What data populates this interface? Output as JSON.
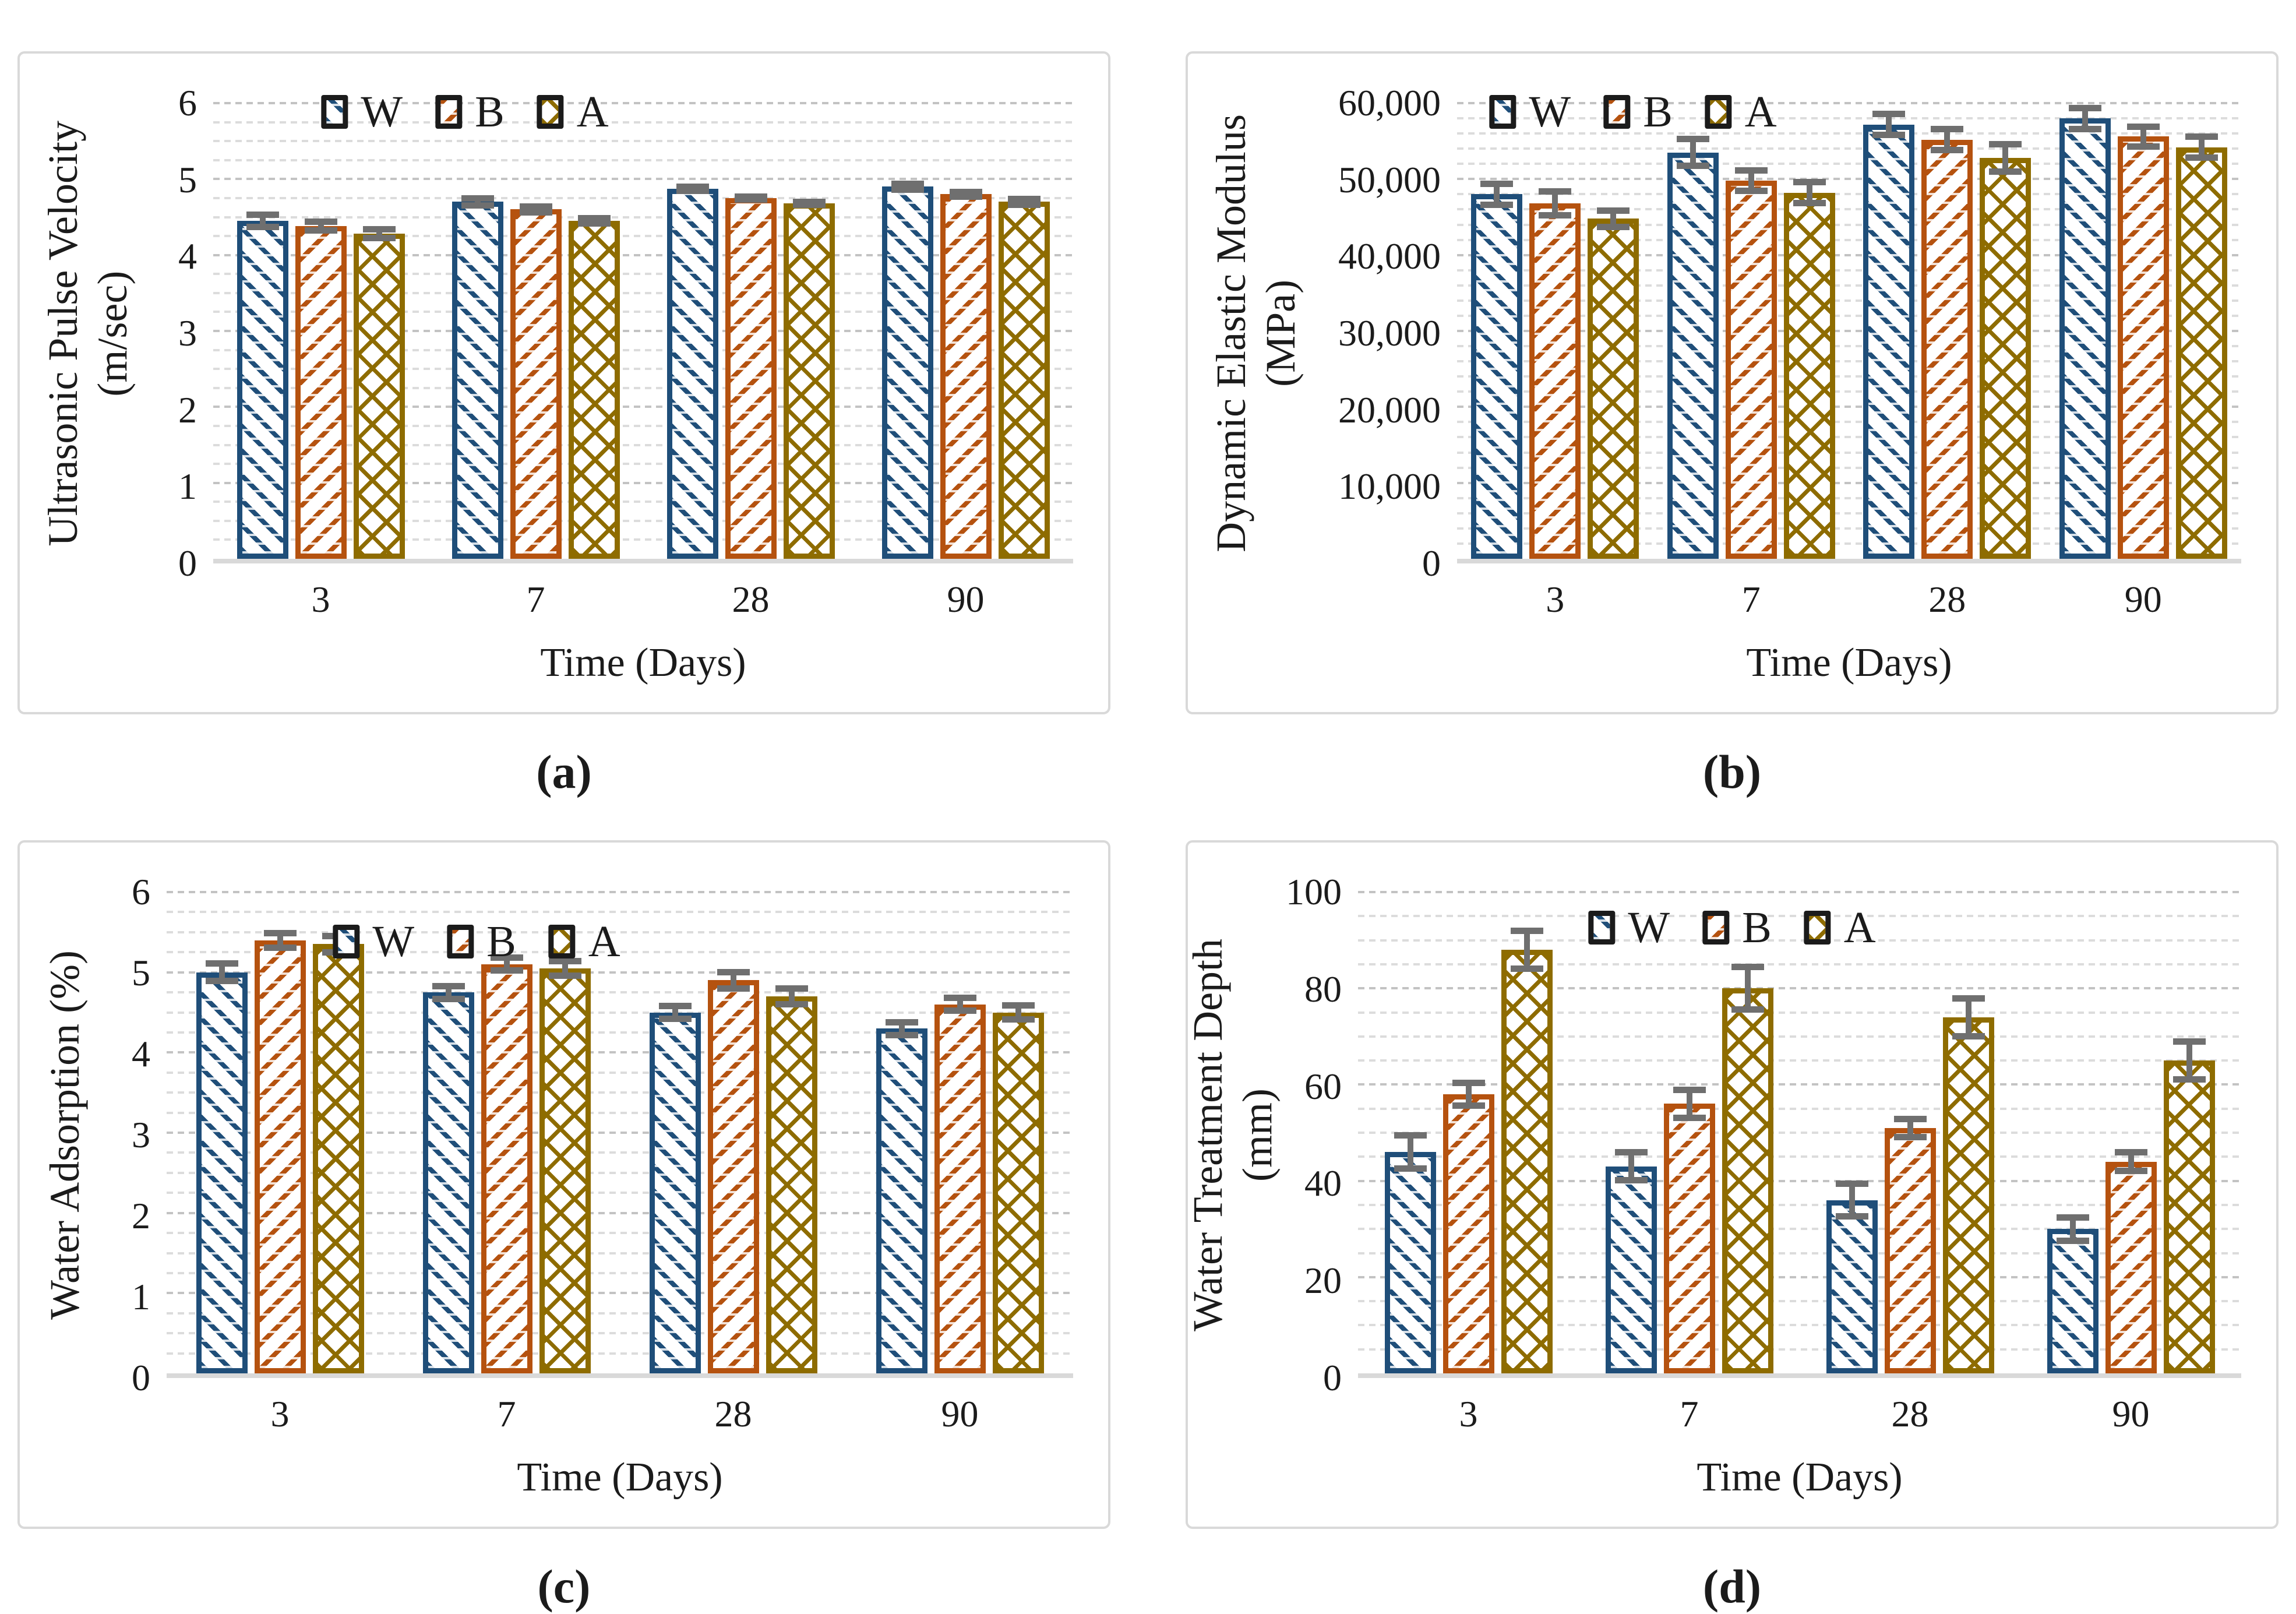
{
  "figure": {
    "captions": [
      "(a)",
      "(b)",
      "(c)",
      "(d)"
    ],
    "legend_labels": [
      "W",
      "B",
      "A"
    ],
    "colors": {
      "W": "#1f4e79",
      "B": "#b5520f",
      "A": "#8e6c00",
      "error_bar": "#6f6f6f",
      "grid_minor": "#dcdcdc",
      "grid_major": "#c3c3c3",
      "axis_line": "#d9d9d9",
      "panel_border": "#d9d9d9",
      "text": "#1b1b1b"
    }
  },
  "chart_data": [
    {
      "type": "bar",
      "panel": "a",
      "title": "",
      "ylabel": "Ultrasonic Pulse Velocity (m/sec)",
      "ylabel_lines": [
        "Ultrasonic Pulse Velocity",
        "(m/sec)"
      ],
      "xlabel": "Time (Days)",
      "categories": [
        "3",
        "7",
        "28",
        "90"
      ],
      "series": [
        {
          "name": "W",
          "values": [
            4.45,
            4.7,
            4.87,
            4.9
          ],
          "errors": [
            0.12,
            0.09,
            0.07,
            0.08
          ]
        },
        {
          "name": "B",
          "values": [
            4.38,
            4.6,
            4.75,
            4.8
          ],
          "errors": [
            0.1,
            0.08,
            0.06,
            0.07
          ]
        },
        {
          "name": "A",
          "values": [
            4.28,
            4.45,
            4.68,
            4.7
          ],
          "errors": [
            0.1,
            0.08,
            0.06,
            0.08
          ]
        }
      ],
      "ylim": [
        0,
        6
      ],
      "yticks": [
        {
          "value": 0,
          "label": "0"
        },
        {
          "value": 1,
          "label": "1"
        },
        {
          "value": 2,
          "label": "2"
        },
        {
          "value": 3,
          "label": "3"
        },
        {
          "value": 4,
          "label": "4"
        },
        {
          "value": 5,
          "label": "5"
        },
        {
          "value": 6,
          "label": "6"
        }
      ],
      "y_major_step": 1,
      "y_minor_step": 0.25,
      "grid": "horizontal-dashed",
      "legend": [
        "W",
        "B",
        "A"
      ],
      "legend_position": "top-center"
    },
    {
      "type": "bar",
      "panel": "b",
      "title": "",
      "ylabel": "Dynamic Elastic Modulus (MPa)",
      "ylabel_lines": [
        "Dynamic Elastic Modulus",
        "(MPa)"
      ],
      "xlabel": "Time (Days)",
      "categories": [
        "3",
        "7",
        "28",
        "90"
      ],
      "series": [
        {
          "name": "W",
          "values": [
            48000,
            53500,
            57200,
            58000
          ],
          "errors": [
            1800,
            2200,
            1800,
            1800
          ]
        },
        {
          "name": "B",
          "values": [
            46800,
            49800,
            55200,
            55600
          ],
          "errors": [
            2000,
            1800,
            1800,
            1700
          ]
        },
        {
          "name": "A",
          "values": [
            44800,
            48200,
            52800,
            54200
          ],
          "errors": [
            1500,
            1800,
            2200,
            1800
          ]
        }
      ],
      "ylim": [
        0,
        60000
      ],
      "yticks": [
        {
          "value": 0,
          "label": "0"
        },
        {
          "value": 10000,
          "label": "10,000"
        },
        {
          "value": 20000,
          "label": "20,000"
        },
        {
          "value": 30000,
          "label": "30,000"
        },
        {
          "value": 40000,
          "label": "40,000"
        },
        {
          "value": 50000,
          "label": "50,000"
        },
        {
          "value": 60000,
          "label": "60,000"
        }
      ],
      "y_major_step": 10000,
      "y_minor_step": 2000,
      "grid": "horizontal-dashed",
      "legend": [
        "W",
        "B",
        "A"
      ],
      "legend_position": "top-center"
    },
    {
      "type": "bar",
      "panel": "c",
      "title": "",
      "ylabel": "Water Adsorption (%)",
      "ylabel_lines": [
        "Water Adsorption (%)"
      ],
      "xlabel": "Time (Days)",
      "categories": [
        "3",
        "7",
        "28",
        "90"
      ],
      "series": [
        {
          "name": "W",
          "values": [
            5.0,
            4.75,
            4.5,
            4.3
          ],
          "errors": [
            0.15,
            0.12,
            0.12,
            0.12
          ]
        },
        {
          "name": "B",
          "values": [
            5.4,
            5.1,
            4.9,
            4.6
          ],
          "errors": [
            0.13,
            0.12,
            0.14,
            0.12
          ]
        },
        {
          "name": "A",
          "values": [
            5.35,
            5.05,
            4.7,
            4.5
          ],
          "errors": [
            0.14,
            0.13,
            0.14,
            0.13
          ]
        }
      ],
      "ylim": [
        0,
        6
      ],
      "yticks": [
        {
          "value": 0,
          "label": "0"
        },
        {
          "value": 1,
          "label": "1"
        },
        {
          "value": 2,
          "label": "2"
        },
        {
          "value": 3,
          "label": "3"
        },
        {
          "value": 4,
          "label": "4"
        },
        {
          "value": 5,
          "label": "5"
        },
        {
          "value": 6,
          "label": "6"
        }
      ],
      "y_major_step": 1,
      "y_minor_step": 0.25,
      "grid": "horizontal-dashed",
      "legend": [
        "W",
        "B",
        "A"
      ],
      "legend_position": "top-center"
    },
    {
      "type": "bar",
      "panel": "d",
      "title": "",
      "ylabel": "Water Treatment Depth (mm)",
      "ylabel_lines": [
        "Water Treatment Depth (mm)"
      ],
      "xlabel": "Time (Days)",
      "categories": [
        "3",
        "7",
        "28",
        "90"
      ],
      "series": [
        {
          "name": "W",
          "values": [
            46,
            43,
            36,
            30
          ],
          "errors": [
            4,
            3.5,
            4,
            3
          ]
        },
        {
          "name": "B",
          "values": [
            58,
            56,
            51,
            44
          ],
          "errors": [
            3,
            3.5,
            2.5,
            2.5
          ]
        },
        {
          "name": "A",
          "values": [
            88,
            80,
            74,
            65
          ],
          "errors": [
            4.5,
            5,
            4.5,
            4.5
          ]
        }
      ],
      "ylim": [
        0,
        100
      ],
      "yticks": [
        {
          "value": 0,
          "label": "0"
        },
        {
          "value": 20,
          "label": "20"
        },
        {
          "value": 40,
          "label": "40"
        },
        {
          "value": 60,
          "label": "60"
        },
        {
          "value": 80,
          "label": "80"
        },
        {
          "value": 100,
          "label": "100"
        }
      ],
      "y_major_step": 20,
      "y_minor_step": 5,
      "grid": "horizontal-dashed",
      "legend": [
        "W",
        "B",
        "A"
      ],
      "legend_position": "top-center"
    }
  ]
}
